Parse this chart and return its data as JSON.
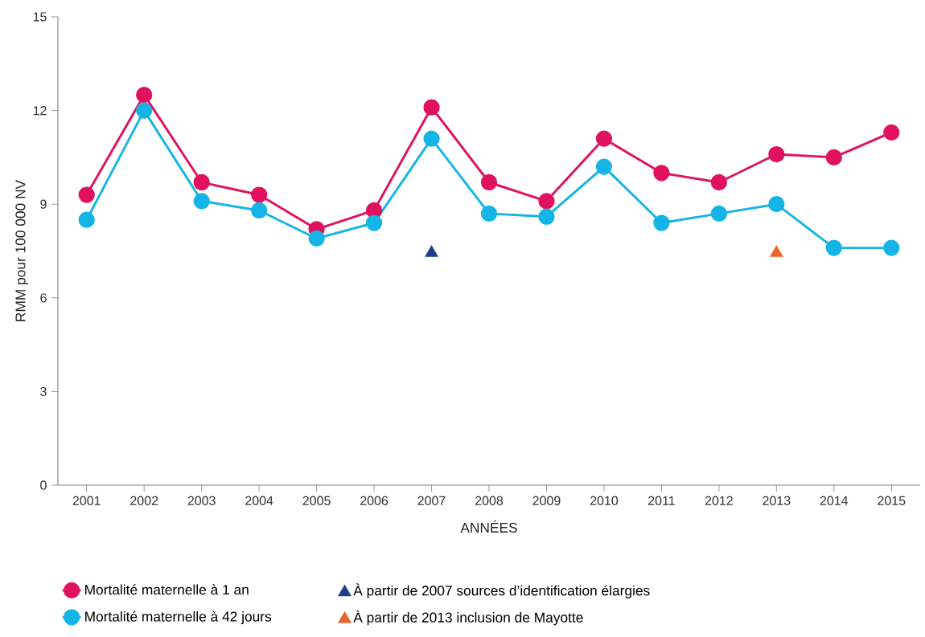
{
  "chart_data": {
    "type": "line",
    "xlabel": "ANNÉES",
    "ylabel": "RMM pour 100 000 NV",
    "x": [
      2001,
      2002,
      2003,
      2004,
      2005,
      2006,
      2007,
      2008,
      2009,
      2010,
      2011,
      2012,
      2013,
      2014,
      2015
    ],
    "xlim": [
      2000.5,
      2015.5
    ],
    "xticks": [
      2001,
      2002,
      2003,
      2004,
      2005,
      2006,
      2007,
      2008,
      2009,
      2010,
      2011,
      2012,
      2013,
      2014,
      2015
    ],
    "ylim": [
      0,
      15
    ],
    "yticks": [
      0,
      3,
      6,
      9,
      12,
      15
    ],
    "grid": false,
    "legend": "bottom",
    "marker": "circle",
    "line_style": "solid",
    "series": [
      {
        "name": "Mortalité maternelle à 1 an",
        "color": "#e0115f",
        "values": [
          9.3,
          12.5,
          9.7,
          9.3,
          8.2,
          8.8,
          12.1,
          9.7,
          9.1,
          11.1,
          10.0,
          9.7,
          10.6,
          10.5,
          11.3
        ]
      },
      {
        "name": "À partir de 2007 sources d’identification élargies",
        "type": "scatter",
        "marker": "triangle",
        "color": "#1b3f8b",
        "x": [
          2007
        ],
        "values": [
          7.5
        ]
      },
      {
        "name": "Mortalité maternelle à 42 jours",
        "color": "#14b4e6",
        "values": [
          8.5,
          12.0,
          9.1,
          8.8,
          7.9,
          8.4,
          11.1,
          8.7,
          8.6,
          10.2,
          8.4,
          8.7,
          9.0,
          7.6,
          7.6
        ]
      },
      {
        "name": "À partir de 2013 inclusion de Mayotte",
        "type": "scatter",
        "marker": "triangle",
        "color": "#e8662c",
        "x": [
          2013
        ],
        "values": [
          7.5
        ]
      }
    ]
  }
}
